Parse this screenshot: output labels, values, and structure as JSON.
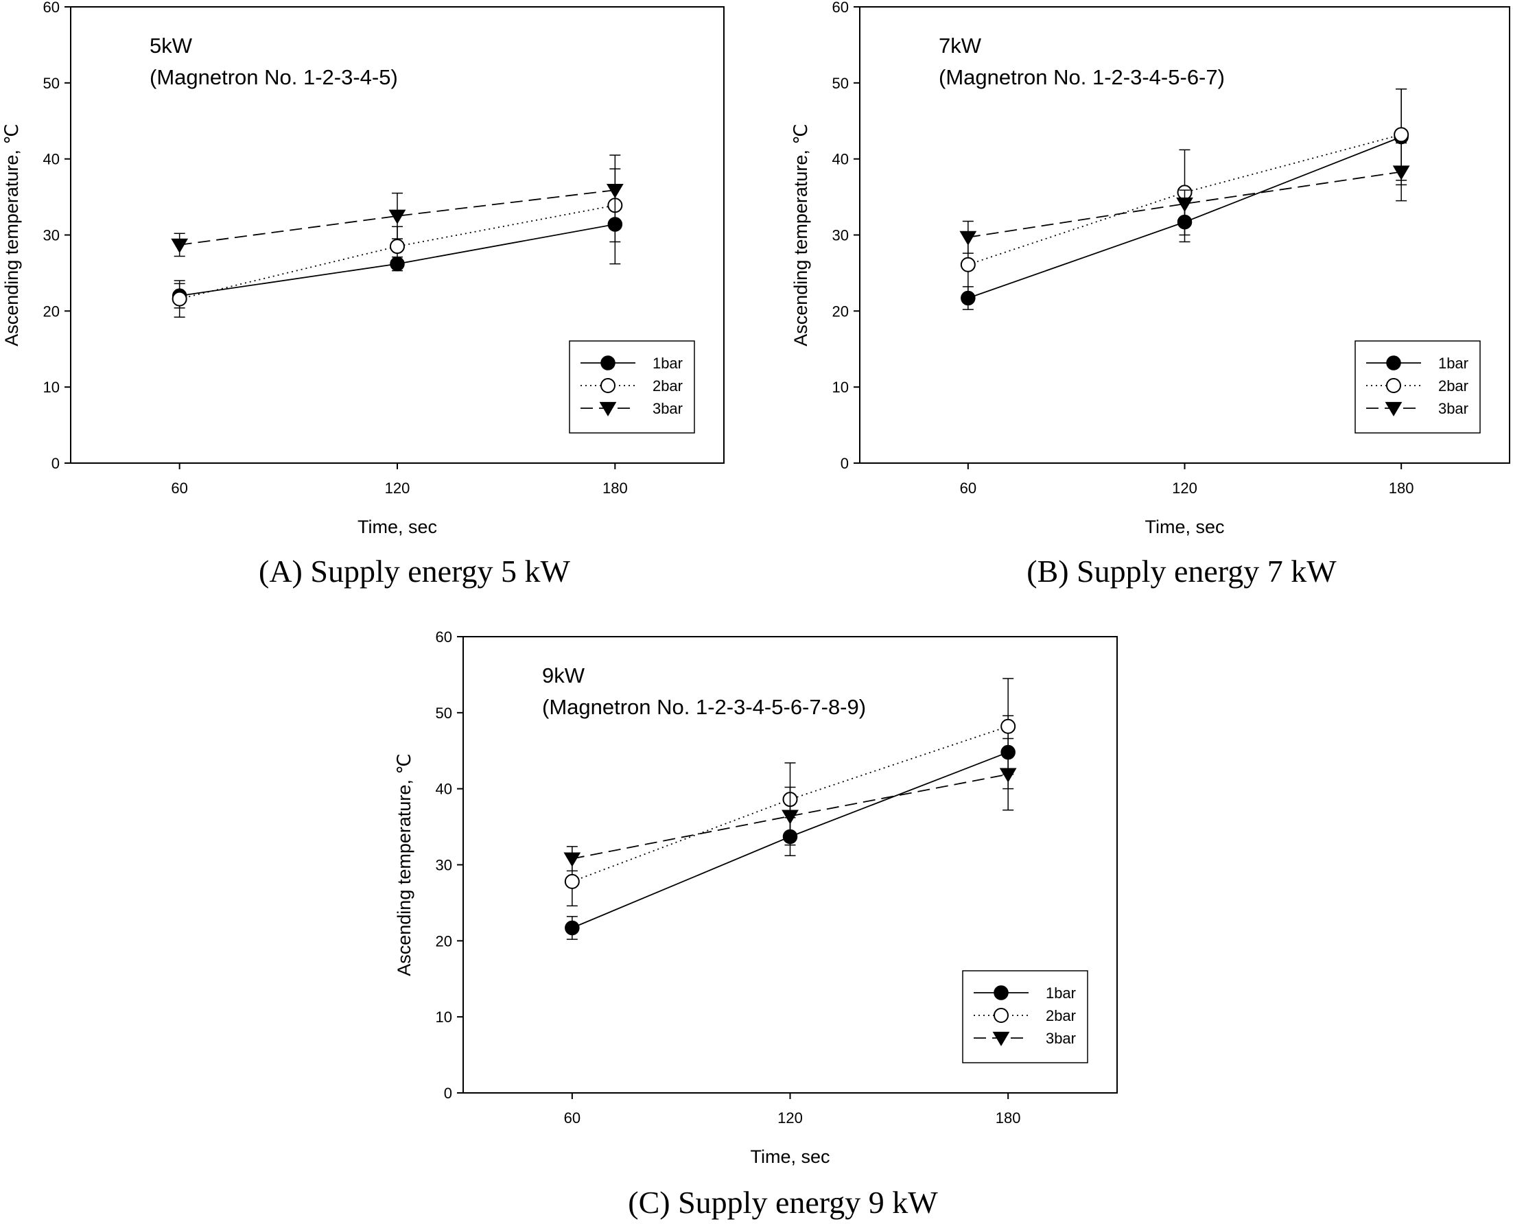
{
  "figure": {
    "panels": [
      "A",
      "B",
      "C"
    ]
  },
  "chart_data": [
    {
      "type": "line",
      "caption": "(A) Supply energy 5 kW",
      "annotation_line1": "5kW",
      "annotation_line2": "(Magnetron No. 1-2-3-4-5)",
      "xlabel": "Time, sec",
      "ylabel": "Ascending temperature, ℃",
      "x": [
        60,
        120,
        180
      ],
      "xticks": [
        "60",
        "120",
        "180"
      ],
      "yticks": [
        "0",
        "10",
        "20",
        "30",
        "40",
        "50",
        "60"
      ],
      "xlim": [
        30,
        210
      ],
      "ylim": [
        0,
        60
      ],
      "legend_position": "lower-right",
      "series": [
        {
          "name": "1bar",
          "marker": "filled-circle",
          "line": "solid",
          "values": [
            22.0,
            26.2,
            31.4
          ],
          "errors": [
            1.6,
            0.9,
            5.2
          ]
        },
        {
          "name": "2bar",
          "marker": "open-circle",
          "line": "dotted",
          "values": [
            21.6,
            28.5,
            33.9
          ],
          "errors": [
            2.4,
            2.6,
            4.8
          ]
        },
        {
          "name": "3bar",
          "marker": "filled-triangle-down",
          "line": "dashed",
          "values": [
            28.7,
            32.5,
            35.9
          ],
          "errors": [
            1.5,
            3.0,
            4.6
          ]
        }
      ]
    },
    {
      "type": "line",
      "caption": "(B) Supply energy 7 kW",
      "annotation_line1": "7kW",
      "annotation_line2": "(Magnetron  No. 1-2-3-4-5-6-7)",
      "xlabel": "Time, sec",
      "ylabel": "Ascending temperature, ℃",
      "x": [
        60,
        120,
        180
      ],
      "xticks": [
        "60",
        "120",
        "180"
      ],
      "yticks": [
        "0",
        "10",
        "20",
        "30",
        "40",
        "50",
        "60"
      ],
      "xlim": [
        30,
        210
      ],
      "ylim": [
        0,
        60
      ],
      "legend_position": "lower-right",
      "series": [
        {
          "name": "1bar",
          "marker": "filled-circle",
          "line": "solid",
          "values": [
            21.7,
            31.7,
            42.9
          ],
          "errors": [
            1.5,
            2.6,
            6.3
          ]
        },
        {
          "name": "2bar",
          "marker": "open-circle",
          "line": "dotted",
          "values": [
            26.1,
            35.6,
            43.2
          ],
          "errors": [
            4.2,
            5.6,
            6.0
          ]
        },
        {
          "name": "3bar",
          "marker": "filled-triangle-down",
          "line": "dashed",
          "values": [
            29.7,
            34.1,
            38.3
          ],
          "errors": [
            2.1,
            1.8,
            3.8
          ]
        }
      ]
    },
    {
      "type": "line",
      "caption": "(C) Supply energy 9 kW",
      "annotation_line1": "9kW",
      "annotation_line2": "(Magnetron  No. 1-2-3-4-5-6-7-8-9)",
      "xlabel": "Time, sec",
      "ylabel": "Ascending temperature, ℃",
      "x": [
        60,
        120,
        180
      ],
      "xticks": [
        "60",
        "120",
        "180"
      ],
      "yticks": [
        "0",
        "10",
        "20",
        "30",
        "40",
        "50",
        "60"
      ],
      "xlim": [
        30,
        210
      ],
      "ylim": [
        0,
        60
      ],
      "legend_position": "lower-right",
      "series": [
        {
          "name": "1bar",
          "marker": "filled-circle",
          "line": "solid",
          "values": [
            21.7,
            33.7,
            44.8
          ],
          "errors": [
            1.5,
            2.5,
            4.8
          ]
        },
        {
          "name": "2bar",
          "marker": "open-circle",
          "line": "dotted",
          "values": [
            27.8,
            38.6,
            48.2
          ],
          "errors": [
            3.2,
            4.8,
            6.3
          ]
        },
        {
          "name": "3bar",
          "marker": "filled-triangle-down",
          "line": "dashed",
          "values": [
            30.8,
            36.4,
            41.9
          ],
          "errors": [
            1.6,
            3.8,
            4.7
          ]
        }
      ]
    }
  ]
}
